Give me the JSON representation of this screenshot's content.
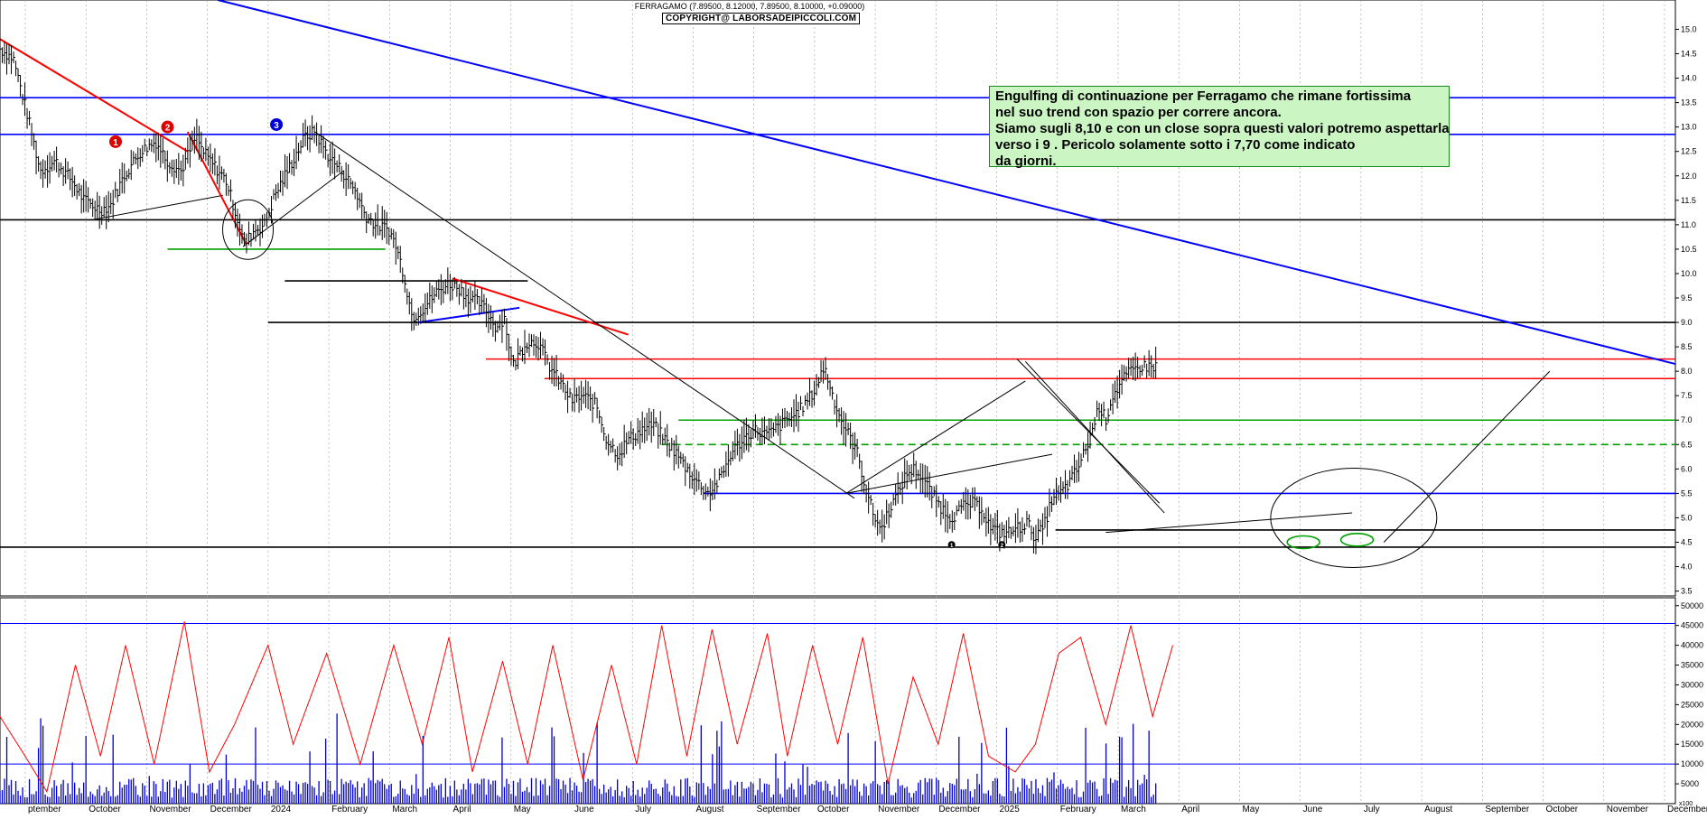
{
  "header": {
    "ticker_line": "FERRAGAMO (7.89500, 8.12000, 7.89500, 8.10000, +0.09000)",
    "copyright": "COPYRIGHT@ LABORSADEIPICCOLI.COM"
  },
  "annotation": {
    "lines": [
      "Engulfing di continuazione per Ferragamo che rimane fortissima",
      "nel suo trend con spazio per correre ancora.",
      "Siamo sugli 8,10  e con un close sopra questi valori  potremo aspettarla",
      "verso i 9 .  Pericolo solamente sotto i 7,70 come indicato",
      "da giorni."
    ]
  },
  "markers": [
    {
      "label": "1",
      "color": "#e00000"
    },
    {
      "label": "2",
      "color": "#e00000"
    },
    {
      "label": "3",
      "color": "#0000d0"
    },
    {
      "label": "1",
      "color": "#000000"
    },
    {
      "label": "2",
      "color": "#000000"
    }
  ],
  "chart_data": [
    {
      "type": "line",
      "title": "FERRAGAMO",
      "ylim": [
        3.4,
        15.6
      ],
      "y_ticks": [
        "3.5",
        "4.0",
        "4.5",
        "5.0",
        "5.5",
        "6.0",
        "6.5",
        "7.0",
        "7.5",
        "8.0",
        "8.5",
        "9.0",
        "9.5",
        "10.0",
        "10.5",
        "11.0",
        "11.5",
        "12.0",
        "12.5",
        "13.0",
        "13.5",
        "14.0",
        "14.5",
        "15.0"
      ],
      "x_ticks": [
        "ptember",
        "October",
        "November",
        "December",
        "2024",
        "February",
        "March",
        "April",
        "May",
        "June",
        "July",
        "August",
        "September",
        "October",
        "November",
        "December",
        "2025",
        "February",
        "March",
        "April",
        "May",
        "June",
        "July",
        "August",
        "September",
        "October",
        "November",
        "December"
      ],
      "price_path": [
        [
          0,
          14.6
        ],
        [
          8,
          14.4
        ],
        [
          16,
          13.3
        ],
        [
          24,
          12.1
        ],
        [
          33,
          12.3
        ],
        [
          43,
          11.9
        ],
        [
          50,
          11.5
        ],
        [
          60,
          11.3
        ],
        [
          66,
          11.4
        ],
        [
          74,
          12.0
        ],
        [
          84,
          12.5
        ],
        [
          93,
          12.7
        ],
        [
          100,
          12.3
        ],
        [
          108,
          12.1
        ],
        [
          117,
          12.8
        ],
        [
          121,
          12.5
        ],
        [
          128,
          12.2
        ],
        [
          135,
          11.9
        ],
        [
          141,
          11.2
        ],
        [
          146,
          10.6
        ],
        [
          152,
          10.9
        ],
        [
          158,
          11.0
        ],
        [
          164,
          11.6
        ],
        [
          173,
          12.2
        ],
        [
          182,
          12.8
        ],
        [
          188,
          12.9
        ],
        [
          196,
          12.4
        ],
        [
          204,
          12.1
        ],
        [
          212,
          11.7
        ],
        [
          218,
          11.2
        ],
        [
          224,
          11.0
        ],
        [
          232,
          10.9
        ],
        [
          236,
          10.6
        ],
        [
          241,
          10.0
        ],
        [
          246,
          9.1
        ],
        [
          253,
          9.3
        ],
        [
          260,
          9.6
        ],
        [
          268,
          9.8
        ],
        [
          274,
          9.7
        ],
        [
          280,
          9.5
        ],
        [
          286,
          9.4
        ],
        [
          291,
          9.2
        ],
        [
          296,
          8.9
        ],
        [
          301,
          9.1
        ],
        [
          306,
          8.1
        ],
        [
          314,
          8.6
        ],
        [
          321,
          8.6
        ],
        [
          328,
          8.1
        ],
        [
          334,
          7.8
        ],
        [
          341,
          7.4
        ],
        [
          348,
          7.5
        ],
        [
          356,
          7.3
        ],
        [
          362,
          6.6
        ],
        [
          369,
          6.3
        ],
        [
          375,
          6.6
        ],
        [
          383,
          6.8
        ],
        [
          390,
          6.9
        ],
        [
          397,
          6.6
        ],
        [
          404,
          6.3
        ],
        [
          410,
          6.0
        ],
        [
          417,
          5.7
        ],
        [
          423,
          5.5
        ],
        [
          430,
          5.8
        ],
        [
          436,
          6.3
        ],
        [
          443,
          6.6
        ],
        [
          450,
          6.8
        ],
        [
          458,
          6.7
        ],
        [
          466,
          6.9
        ],
        [
          474,
          7.1
        ],
        [
          480,
          7.3
        ],
        [
          486,
          7.6
        ],
        [
          492,
          8.1
        ],
        [
          497,
          7.5
        ],
        [
          502,
          7.0
        ],
        [
          508,
          6.6
        ],
        [
          512,
          6.3
        ],
        [
          516,
          5.7
        ],
        [
          521,
          5.1
        ],
        [
          526,
          4.75
        ],
        [
          531,
          5.2
        ],
        [
          536,
          5.5
        ],
        [
          541,
          5.9
        ],
        [
          546,
          6.0
        ],
        [
          551,
          5.8
        ],
        [
          556,
          5.5
        ],
        [
          562,
          5.2
        ],
        [
          568,
          5.0
        ],
        [
          574,
          5.2
        ],
        [
          580,
          5.3
        ],
        [
          586,
          5.2
        ],
        [
          591,
          4.8
        ],
        [
          596,
          4.7
        ],
        [
          602,
          4.7
        ],
        [
          608,
          4.8
        ],
        [
          613,
          4.9
        ],
        [
          618,
          4.6
        ],
        [
          623,
          4.8
        ],
        [
          628,
          5.4
        ],
        [
          633,
          5.5
        ],
        [
          638,
          5.7
        ],
        [
          643,
          6.0
        ],
        [
          648,
          6.4
        ],
        [
          652,
          6.8
        ],
        [
          656,
          7.3
        ],
        [
          660,
          7.0
        ],
        [
          664,
          7.5
        ],
        [
          668,
          7.7
        ],
        [
          672,
          7.9
        ],
        [
          676,
          8.0
        ],
        [
          680,
          8.1
        ]
      ],
      "annotations_price": {
        "horizontal_lines": [
          {
            "y": 13.6,
            "color": "#0000ff"
          },
          {
            "y": 12.85,
            "color": "#0000ff"
          },
          {
            "y": 11.1,
            "color": "#000000"
          },
          {
            "y": 10.5,
            "color": "#00a000",
            "x": [
              100,
              230
            ]
          },
          {
            "y": 9.85,
            "color": "#000000",
            "x": [
              170,
              315
            ]
          },
          {
            "y": 9.0,
            "color": "#000000",
            "x": [
              160,
              1000
            ]
          },
          {
            "y": 8.25,
            "color": "#ff0000",
            "x": [
              290,
              1000
            ]
          },
          {
            "y": 7.85,
            "color": "#ff0000",
            "x": [
              325,
              1000
            ]
          },
          {
            "y": 7.0,
            "color": "#00a000",
            "x": [
              405,
              1000
            ]
          },
          {
            "y": 6.5,
            "color": "#00a000",
            "x": [
              395,
              1000
            ],
            "dashed": true
          },
          {
            "y": 5.5,
            "color": "#0000ff",
            "x": [
              420,
              1000
            ]
          },
          {
            "y": 4.75,
            "color": "#000000",
            "x": [
              630,
              1000
            ]
          },
          {
            "y": 4.4,
            "color": "#000000"
          }
        ],
        "trend_lines": [
          {
            "from": [
              130,
              15.6
            ],
            "to": [
              1000,
              8.15
            ],
            "color": "#0000ff"
          },
          {
            "from": [
              0,
              14.8
            ],
            "to": [
              112,
              12.5
            ],
            "color": "#ff0000"
          },
          {
            "from": [
              270,
              9.9
            ],
            "to": [
              375,
              8.75
            ],
            "color": "#ff0000"
          },
          {
            "from": [
              188,
              12.9
            ],
            "to": [
              510,
              5.4
            ],
            "color": "#000000"
          },
          {
            "from": [
              505,
              5.5
            ],
            "to": [
              612,
              7.8
            ],
            "color": "#000000"
          },
          {
            "from": [
              505,
              5.5
            ],
            "to": [
              628,
              6.3
            ],
            "color": "#000000"
          },
          {
            "from": [
              607,
              8.25
            ],
            "to": [
              692,
              5.3
            ],
            "color": "#000000"
          },
          {
            "from": [
              612,
              8.2
            ],
            "to": [
              695,
              5.1
            ],
            "color": "#000000"
          },
          {
            "from": [
              660,
              4.7
            ],
            "to": [
              807,
              5.1
            ],
            "color": "#000000"
          },
          {
            "from": [
              826,
              4.5
            ],
            "to": [
              925,
              8.0
            ],
            "color": "#000000"
          },
          {
            "from": [
              145,
              10.55
            ],
            "to": [
              205,
              12.1
            ],
            "color": "#000000"
          },
          {
            "from": [
              55,
              11.1
            ],
            "to": [
              133,
              11.6
            ],
            "color": "#000000"
          },
          {
            "from": [
              112,
              12.9
            ],
            "to": [
              147,
              10.6
            ],
            "color": "#ff0000"
          },
          {
            "from": [
              250,
              9.0
            ],
            "to": [
              310,
              9.3
            ],
            "color": "#0000ff"
          }
        ]
      }
    },
    {
      "type": "bar",
      "title": "Volume",
      "ylim": [
        0,
        52000
      ],
      "y_ticks": [
        "5000",
        "10000",
        "15000",
        "20000",
        "25000",
        "30000",
        "35000",
        "40000",
        "45000",
        "50000"
      ],
      "volume_reference_lines": [
        45500,
        10000
      ],
      "volume_x100_label": "x100",
      "moving_average_path": [
        [
          0,
          22000
        ],
        [
          15,
          12000
        ],
        [
          28,
          3000
        ],
        [
          45,
          35000
        ],
        [
          60,
          12000
        ],
        [
          75,
          40000
        ],
        [
          92,
          10000
        ],
        [
          110,
          46000
        ],
        [
          125,
          8000
        ],
        [
          140,
          20000
        ],
        [
          160,
          40000
        ],
        [
          175,
          15000
        ],
        [
          195,
          38000
        ],
        [
          215,
          10000
        ],
        [
          235,
          40000
        ],
        [
          252,
          15000
        ],
        [
          268,
          42000
        ],
        [
          282,
          8000
        ],
        [
          300,
          36000
        ],
        [
          315,
          10000
        ],
        [
          330,
          40000
        ],
        [
          348,
          6000
        ],
        [
          365,
          35000
        ],
        [
          380,
          10000
        ],
        [
          395,
          45000
        ],
        [
          410,
          12000
        ],
        [
          425,
          44000
        ],
        [
          440,
          15000
        ],
        [
          458,
          43000
        ],
        [
          470,
          12000
        ],
        [
          485,
          40000
        ],
        [
          500,
          15000
        ],
        [
          515,
          42000
        ],
        [
          530,
          5000
        ],
        [
          545,
          32000
        ],
        [
          560,
          15000
        ],
        [
          575,
          43000
        ],
        [
          590,
          12000
        ],
        [
          606,
          8000
        ],
        [
          618,
          15000
        ],
        [
          632,
          38000
        ],
        [
          645,
          42000
        ],
        [
          660,
          20000
        ],
        [
          675,
          45000
        ],
        [
          688,
          22000
        ],
        [
          700,
          40000
        ]
      ]
    }
  ]
}
